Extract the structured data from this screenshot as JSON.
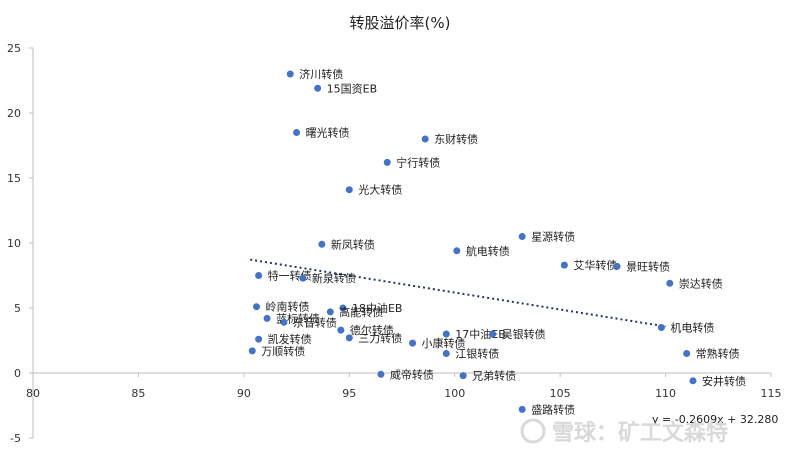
{
  "chart_data": {
    "type": "scatter",
    "title": "转股溢价率(%)",
    "xlim": [
      80,
      115
    ],
    "ylim": [
      -5,
      25
    ],
    "xticks": [
      "80",
      "85",
      "90",
      "95",
      "100",
      "105",
      "110",
      "115"
    ],
    "yticks": [
      "-5",
      "0",
      "5",
      "10",
      "15",
      "20",
      "25"
    ],
    "point_color": "#4472C4",
    "points": [
      {
        "label": "济川转债",
        "x": 92.2,
        "y": 23.0
      },
      {
        "label": "15国资EB",
        "x": 93.5,
        "y": 21.9
      },
      {
        "label": "曙光转债",
        "x": 92.5,
        "y": 18.5
      },
      {
        "label": "东财转债",
        "x": 98.6,
        "y": 18.0
      },
      {
        "label": "宁行转债",
        "x": 96.8,
        "y": 16.2
      },
      {
        "label": "光大转债",
        "x": 95.0,
        "y": 14.1
      },
      {
        "label": "新凤转债",
        "x": 93.7,
        "y": 9.9
      },
      {
        "label": "航电转债",
        "x": 100.1,
        "y": 9.4
      },
      {
        "label": "星源转债",
        "x": 103.2,
        "y": 10.5
      },
      {
        "label": "艾华转债",
        "x": 105.2,
        "y": 8.3
      },
      {
        "label": "景旺转债",
        "x": 107.7,
        "y": 8.2
      },
      {
        "label": "崇达转债",
        "x": 110.2,
        "y": 6.9
      },
      {
        "label": "特一转债",
        "x": 90.7,
        "y": 7.5
      },
      {
        "label": "新泉转债",
        "x": 92.8,
        "y": 7.3
      },
      {
        "label": "岭南转债",
        "x": 90.6,
        "y": 5.1
      },
      {
        "label": "18中油EB",
        "x": 94.7,
        "y": 5.0
      },
      {
        "label": "高能转债",
        "x": 94.1,
        "y": 4.7
      },
      {
        "label": "蓝标转债",
        "x": 91.1,
        "y": 4.2
      },
      {
        "label": "东音转债",
        "x": 91.9,
        "y": 3.9
      },
      {
        "label": "德尔转债",
        "x": 94.6,
        "y": 3.3
      },
      {
        "label": "17中油EB",
        "x": 99.6,
        "y": 3.0
      },
      {
        "label": "吴银转债",
        "x": 101.8,
        "y": 3.0
      },
      {
        "label": "机电转债",
        "x": 109.8,
        "y": 3.5
      },
      {
        "label": "凯发转债",
        "x": 90.7,
        "y": 2.6
      },
      {
        "label": "三力转债",
        "x": 95.0,
        "y": 2.7
      },
      {
        "label": "小康转债",
        "x": 98.0,
        "y": 2.3
      },
      {
        "label": "万顺转债",
        "x": 90.4,
        "y": 1.7
      },
      {
        "label": "江银转债",
        "x": 99.6,
        "y": 1.5
      },
      {
        "label": "常熟转债",
        "x": 111.0,
        "y": 1.5
      },
      {
        "label": "威帝转债",
        "x": 96.5,
        "y": -0.1
      },
      {
        "label": "兄弟转债",
        "x": 100.4,
        "y": -0.2
      },
      {
        "label": "安井转债",
        "x": 111.3,
        "y": -0.6
      },
      {
        "label": "盛路转债",
        "x": 103.2,
        "y": -2.8
      }
    ],
    "trendline": {
      "style": "dotted",
      "color": "#1F3864",
      "slope": -0.2609,
      "intercept": 32.28,
      "x_range": [
        90.3,
        110
      ],
      "equation": "y = -0.2609x + 32.280"
    },
    "grid": false
  },
  "watermark": "雪球：矿工文森特"
}
